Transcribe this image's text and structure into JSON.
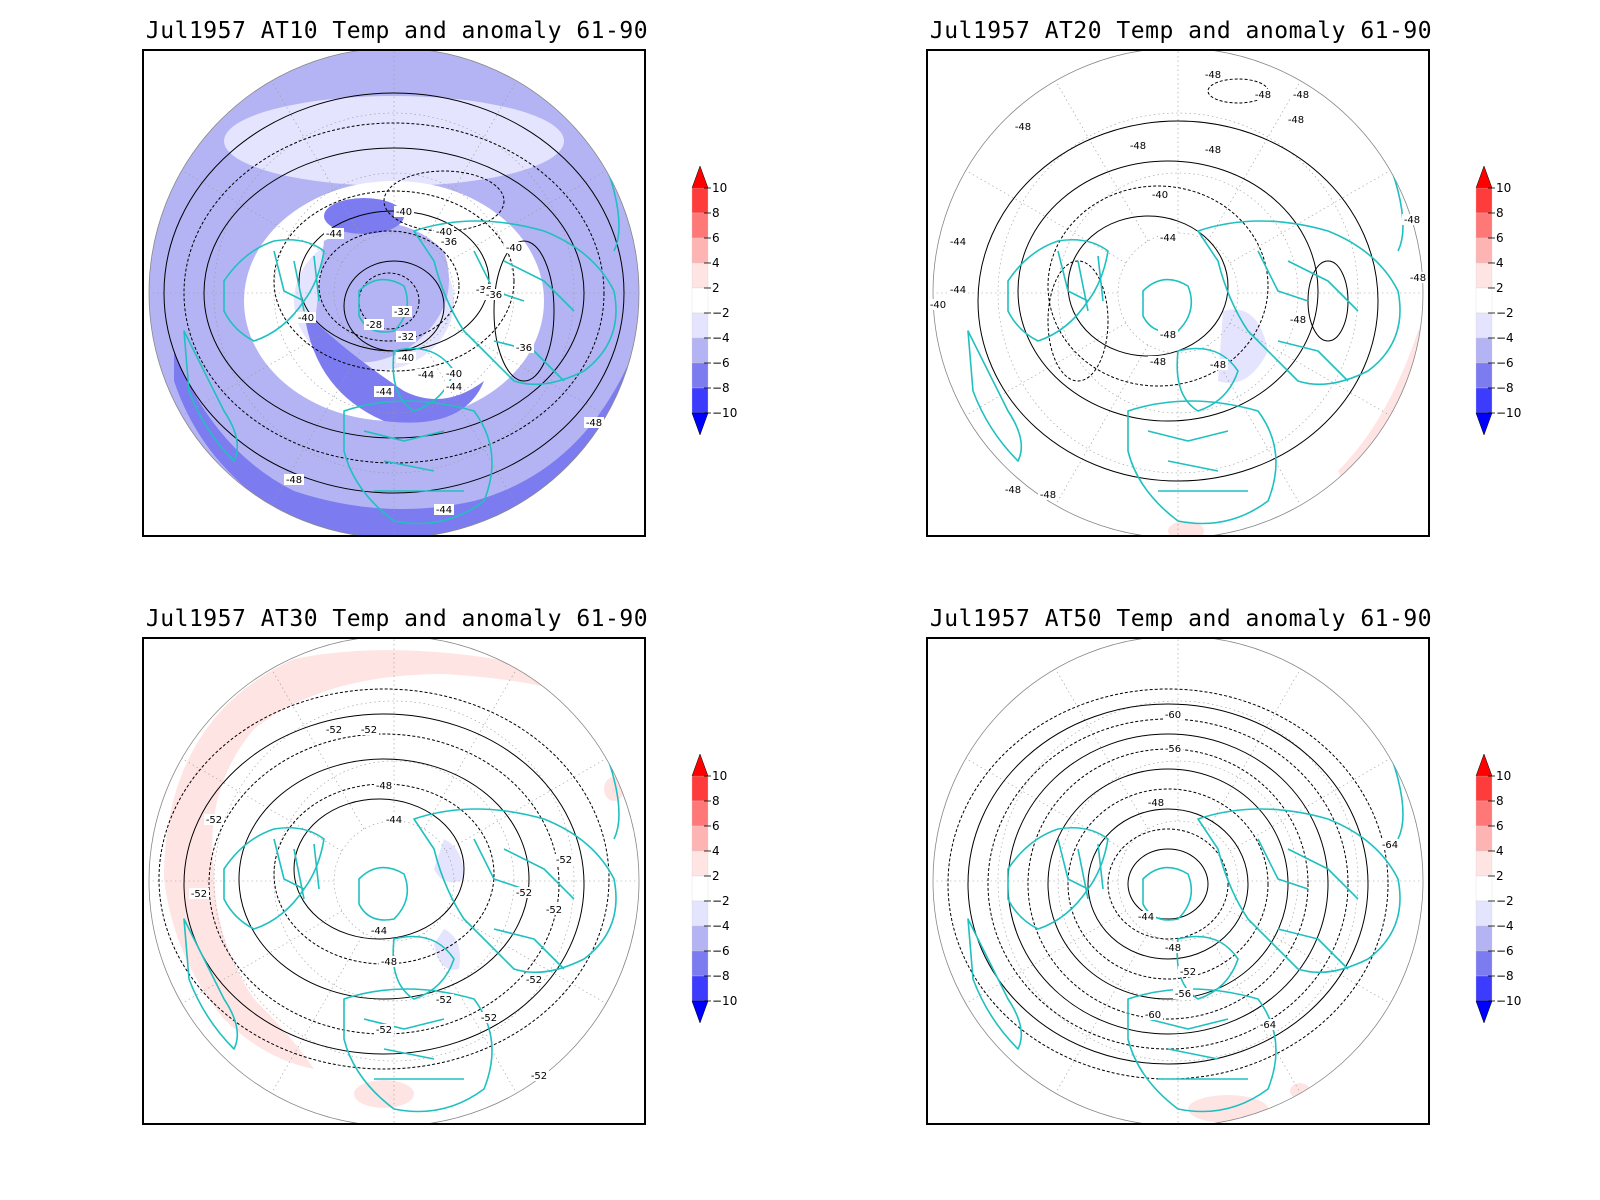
{
  "colorbar": {
    "labels": [
      "10",
      "8",
      "6",
      "4",
      "2",
      "−2",
      "−4",
      "−6",
      "−8",
      "−10"
    ],
    "colors": [
      "#ff0000",
      "#ff3c3c",
      "#ff7878",
      "#ffb4b4",
      "#ffe4e4",
      "#ffffff",
      "#e4e4ff",
      "#b4b4f4",
      "#7c7cf0",
      "#3c3cff",
      "#0000ff"
    ]
  },
  "style": {
    "coast_color": "#20c0c0",
    "contour_color": "#000000"
  },
  "panels": [
    {
      "title": "Jul1957 AT10 Temp and anomaly 61-90",
      "contour_labels": [
        "-40",
        "-44",
        "-40",
        "-36",
        "-36",
        "-32",
        "-40",
        "-28",
        "-32",
        "-40",
        "-44",
        "-40",
        "-44",
        "-44",
        "-48",
        "-48",
        "-44",
        "-40",
        "-36",
        "-36"
      ]
    },
    {
      "title": "Jul1957 AT20 Temp and anomaly 61-90",
      "contour_labels": [
        "-48",
        "-48",
        "-48",
        "-48",
        "-48",
        "-48",
        "-48",
        "-44",
        "-44",
        "-40",
        "-40",
        "-44",
        "-48",
        "-48",
        "-48",
        "-48",
        "-48",
        "-48",
        "-48",
        "-48"
      ]
    },
    {
      "title": "Jul1957 AT30 Temp and anomaly 61-90",
      "contour_labels": [
        "-52",
        "-52",
        "-48",
        "-44",
        "-52",
        "-52",
        "-52",
        "-52",
        "-52",
        "-44",
        "-48",
        "-52",
        "-52",
        "-52",
        "-52",
        "-52"
      ]
    },
    {
      "title": "Jul1957 AT50 Temp and anomaly 61-90",
      "contour_labels": [
        "-60",
        "-56",
        "-48",
        "-44",
        "-48",
        "-52",
        "-56",
        "-60",
        "-64",
        "-64"
      ]
    }
  ]
}
